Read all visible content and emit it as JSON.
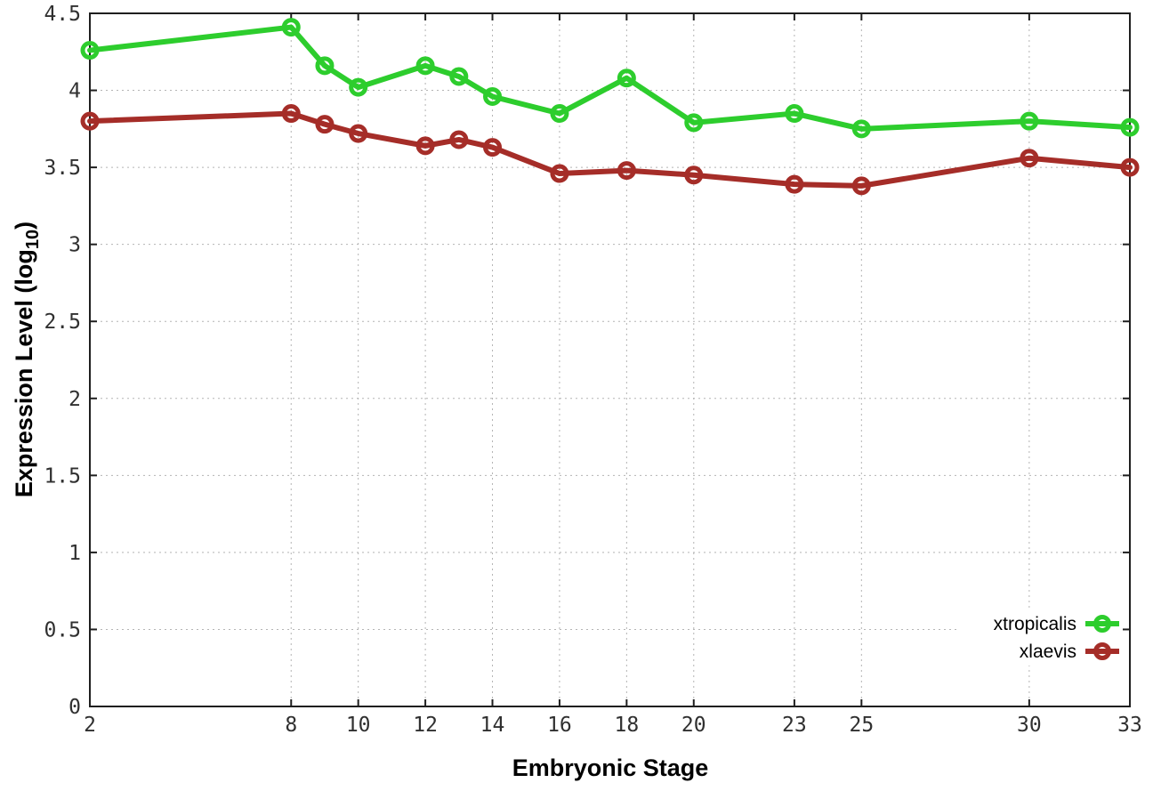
{
  "figure": {
    "background": "#ffffff",
    "border_color": "#1f1f1f",
    "grid_color": "#b4b4b4",
    "tick_label_color": "#303030"
  },
  "chart_data": {
    "type": "line",
    "title": "",
    "xlabel": "Embryonic Stage",
    "ylabel": "Expression Level (log10)",
    "ylabel_rich": {
      "prefix": "Expression Level (log",
      "sub": "10",
      "suffix": ")"
    },
    "x": [
      2,
      8,
      9,
      10,
      12,
      13,
      14,
      16,
      18,
      20,
      23,
      25,
      30,
      33
    ],
    "series": [
      {
        "name": "xtropicalis",
        "color": "#2DCD2D",
        "values": [
          4.26,
          4.41,
          4.16,
          4.02,
          4.16,
          4.09,
          3.96,
          3.85,
          4.08,
          3.79,
          3.85,
          3.75,
          3.8,
          3.76
        ]
      },
      {
        "name": "xlaevis",
        "color": "#A52D28",
        "values": [
          3.8,
          3.85,
          3.78,
          3.72,
          3.64,
          3.68,
          3.63,
          3.46,
          3.48,
          3.45,
          3.39,
          3.38,
          3.56,
          3.5
        ]
      }
    ],
    "xlim": [
      2,
      33
    ],
    "ylim": [
      0,
      4.5
    ],
    "xticks": [
      2,
      8,
      10,
      12,
      14,
      16,
      18,
      20,
      23,
      25,
      30,
      33
    ],
    "ytick_labels": [
      "0",
      "0.5",
      "1",
      "1.5",
      "2",
      "2.5",
      "3",
      "3.5",
      "4",
      "4.5"
    ],
    "grid": true,
    "grid_style": "dotted",
    "legend_position": "bottom-right",
    "marker": "open-circle"
  }
}
